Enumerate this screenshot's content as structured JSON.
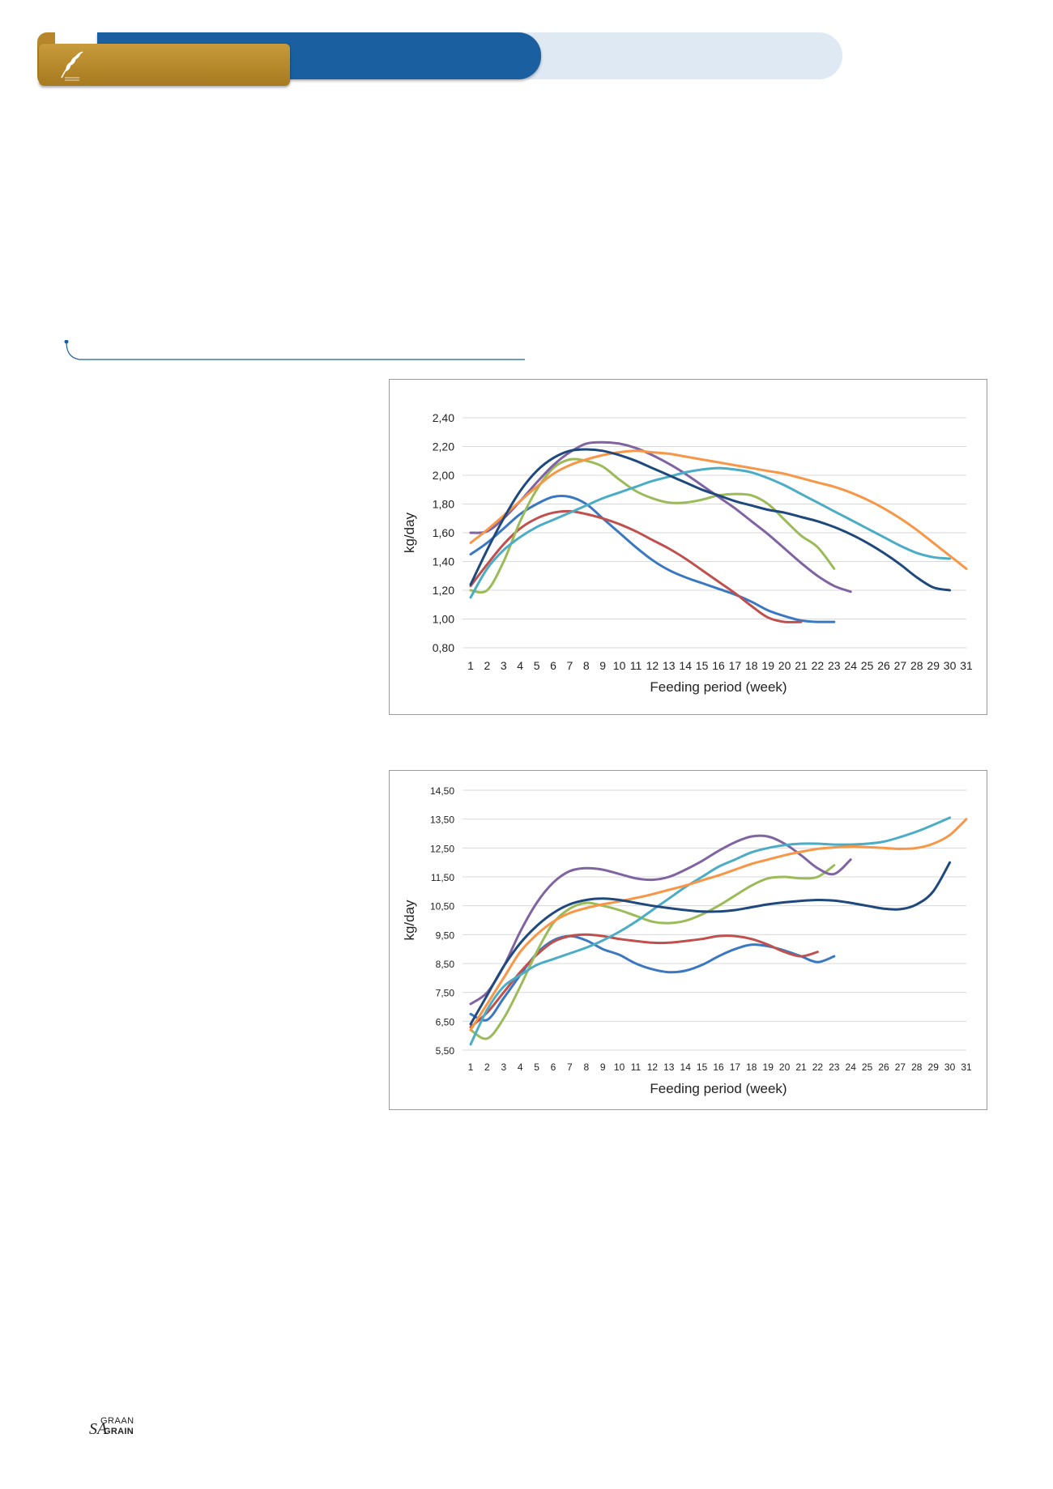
{
  "header": {
    "colors": {
      "gold": "#b8862a",
      "blue": "#1a5fa0",
      "light": "#dfe9f4"
    },
    "logo_icon": "wheat-ear-icon"
  },
  "footer": {
    "graan": "GRAAN",
    "sa": "SA",
    "grain": "GRAIN"
  },
  "series_colors": [
    "#3b78c2",
    "#c0504d",
    "#9bbb59",
    "#8064a2",
    "#4bacc6",
    "#f79646",
    "#1f497d"
  ],
  "chart_data": [
    {
      "type": "line",
      "title": "",
      "xlabel": "Feeding period (week)",
      "ylabel": "kg/day",
      "xlim": [
        1,
        31
      ],
      "ylim": [
        0.8,
        2.4
      ],
      "y_ticks": [
        "0,80",
        "1,00",
        "1,20",
        "1,40",
        "1,60",
        "1,80",
        "2,00",
        "2,20",
        "2,40"
      ],
      "x_ticks": [
        "1",
        "2",
        "3",
        "4",
        "5",
        "6",
        "7",
        "8",
        "9",
        "10",
        "11",
        "12",
        "13",
        "14",
        "15",
        "16",
        "17",
        "18",
        "19",
        "20",
        "21",
        "22",
        "23",
        "24",
        "25",
        "26",
        "27",
        "28",
        "29",
        "30",
        "31"
      ],
      "grid": true,
      "series": [
        {
          "values": [
            1.45,
            1.53,
            1.63,
            1.73,
            1.8,
            1.85,
            1.85,
            1.8,
            1.7,
            1.6,
            1.5,
            1.41,
            1.34,
            1.29,
            1.25,
            1.21,
            1.17,
            1.12,
            1.06,
            1.02,
            0.99,
            0.98,
            0.98
          ]
        },
        {
          "values": [
            1.23,
            1.38,
            1.52,
            1.63,
            1.7,
            1.74,
            1.75,
            1.73,
            1.7,
            1.66,
            1.61,
            1.55,
            1.49,
            1.42,
            1.34,
            1.26,
            1.18,
            1.09,
            1.01,
            0.98,
            0.98
          ]
        },
        {
          "values": [
            1.2,
            1.2,
            1.4,
            1.68,
            1.9,
            2.05,
            2.11,
            2.1,
            2.06,
            1.97,
            1.89,
            1.84,
            1.81,
            1.81,
            1.83,
            1.86,
            1.87,
            1.86,
            1.8,
            1.69,
            1.58,
            1.5,
            1.35
          ]
        },
        {
          "values": [
            1.6,
            1.61,
            1.7,
            1.82,
            1.95,
            2.07,
            2.16,
            2.22,
            2.23,
            2.22,
            2.19,
            2.14,
            2.08,
            2.01,
            1.93,
            1.85,
            1.77,
            1.68,
            1.59,
            1.49,
            1.39,
            1.3,
            1.23,
            1.19
          ]
        },
        {
          "values": [
            1.15,
            1.35,
            1.48,
            1.57,
            1.64,
            1.69,
            1.74,
            1.79,
            1.84,
            1.88,
            1.92,
            1.96,
            1.99,
            2.02,
            2.04,
            2.05,
            2.04,
            2.02,
            1.98,
            1.93,
            1.87,
            1.81,
            1.75,
            1.69,
            1.63,
            1.57,
            1.51,
            1.46,
            1.43,
            1.42
          ]
        },
        {
          "values": [
            1.53,
            1.62,
            1.72,
            1.82,
            1.92,
            2.01,
            2.07,
            2.11,
            2.14,
            2.16,
            2.17,
            2.16,
            2.15,
            2.13,
            2.11,
            2.09,
            2.07,
            2.05,
            2.03,
            2.01,
            1.98,
            1.95,
            1.92,
            1.88,
            1.83,
            1.77,
            1.7,
            1.62,
            1.53,
            1.44,
            1.35
          ]
        },
        {
          "values": [
            1.24,
            1.48,
            1.7,
            1.89,
            2.03,
            2.12,
            2.17,
            2.18,
            2.17,
            2.14,
            2.1,
            2.05,
            2.0,
            1.95,
            1.9,
            1.86,
            1.82,
            1.79,
            1.76,
            1.74,
            1.71,
            1.68,
            1.64,
            1.59,
            1.53,
            1.46,
            1.38,
            1.29,
            1.22,
            1.2
          ]
        }
      ]
    },
    {
      "type": "line",
      "title": "",
      "xlabel": "Feeding period (week)",
      "ylabel": "kg/day",
      "xlim": [
        1,
        31
      ],
      "ylim": [
        5.5,
        14.5
      ],
      "y_ticks": [
        "5,50",
        "6,50",
        "7,50",
        "8,50",
        "9,50",
        "10,50",
        "11,50",
        "12,50",
        "13,50",
        "14,50"
      ],
      "x_ticks": [
        "1",
        "2",
        "3",
        "4",
        "5",
        "6",
        "7",
        "8",
        "9",
        "10",
        "11",
        "12",
        "13",
        "14",
        "15",
        "16",
        "17",
        "18",
        "19",
        "20",
        "21",
        "22",
        "23",
        "24",
        "25",
        "26",
        "27",
        "28",
        "29",
        "30",
        "31"
      ],
      "grid": true,
      "series": [
        {
          "values": [
            6.75,
            6.55,
            7.3,
            8.1,
            8.85,
            9.3,
            9.45,
            9.3,
            9.0,
            8.8,
            8.5,
            8.3,
            8.2,
            8.25,
            8.45,
            8.75,
            9.0,
            9.15,
            9.1,
            8.95,
            8.75,
            8.55,
            8.75
          ]
        },
        {
          "values": [
            6.3,
            6.8,
            7.5,
            8.2,
            8.8,
            9.25,
            9.45,
            9.5,
            9.45,
            9.35,
            9.28,
            9.22,
            9.22,
            9.28,
            9.35,
            9.45,
            9.45,
            9.35,
            9.15,
            8.9,
            8.75,
            8.9
          ]
        },
        {
          "values": [
            6.2,
            5.9,
            6.6,
            7.7,
            8.9,
            9.9,
            10.4,
            10.6,
            10.5,
            10.35,
            10.15,
            9.95,
            9.9,
            9.98,
            10.2,
            10.5,
            10.85,
            11.2,
            11.45,
            11.5,
            11.45,
            11.5,
            11.9
          ]
        },
        {
          "values": [
            7.1,
            7.5,
            8.4,
            9.6,
            10.6,
            11.3,
            11.7,
            11.8,
            11.75,
            11.6,
            11.45,
            11.4,
            11.5,
            11.75,
            12.05,
            12.4,
            12.7,
            12.9,
            12.9,
            12.65,
            12.25,
            11.8,
            11.6,
            12.1
          ]
        },
        {
          "values": [
            5.7,
            6.9,
            7.7,
            8.1,
            8.45,
            8.65,
            8.85,
            9.05,
            9.3,
            9.6,
            9.95,
            10.35,
            10.75,
            11.15,
            11.5,
            11.85,
            12.1,
            12.35,
            12.5,
            12.6,
            12.65,
            12.65,
            12.62,
            12.62,
            12.65,
            12.72,
            12.88,
            13.07,
            13.3,
            13.55
          ]
        },
        {
          "values": [
            6.2,
            7.1,
            8.0,
            8.9,
            9.5,
            9.95,
            10.25,
            10.42,
            10.55,
            10.65,
            10.77,
            10.9,
            11.05,
            11.2,
            11.38,
            11.55,
            11.75,
            11.95,
            12.1,
            12.25,
            12.37,
            12.47,
            12.52,
            12.55,
            12.53,
            12.5,
            12.47,
            12.5,
            12.65,
            12.95,
            13.5
          ]
        },
        {
          "values": [
            6.4,
            7.4,
            8.4,
            9.2,
            9.8,
            10.25,
            10.55,
            10.7,
            10.75,
            10.7,
            10.6,
            10.5,
            10.42,
            10.35,
            10.3,
            10.3,
            10.35,
            10.45,
            10.55,
            10.62,
            10.67,
            10.7,
            10.68,
            10.6,
            10.5,
            10.4,
            10.38,
            10.55,
            11.0,
            12.0
          ]
        }
      ]
    }
  ]
}
